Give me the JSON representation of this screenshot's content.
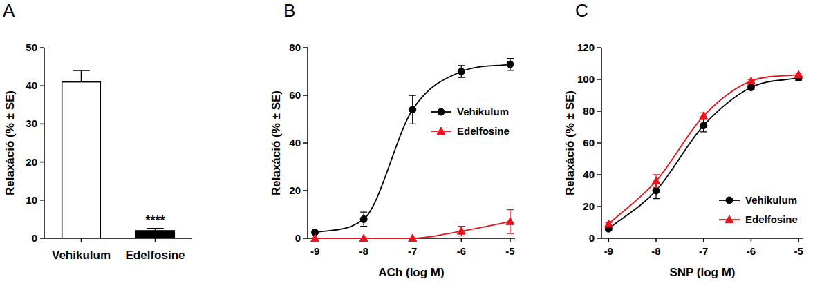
{
  "chart_data": [
    {
      "type": "bar",
      "title": "A",
      "categories": [
        "Vehikulum",
        "Edelfosine"
      ],
      "values": [
        41,
        2
      ],
      "errors": [
        3,
        0.6
      ],
      "colors": [
        "#ffffff",
        "#000000"
      ],
      "y_label": "Relaxáció (% ± SE)",
      "ylim": [
        0,
        50
      ],
      "yticks": [
        0,
        10,
        20,
        30,
        40,
        50
      ],
      "annotations": [
        {
          "text": "****",
          "category": "Edelfosine"
        }
      ]
    },
    {
      "type": "line",
      "title": "B",
      "x": [
        -9,
        -8,
        -7,
        -6,
        -5
      ],
      "x_label": "ACh (log M)",
      "y_label": "Relaxáció (% ± SE)",
      "xlim": [
        -9.15,
        -4.9
      ],
      "xticks": [
        -9,
        -8,
        -7,
        -6,
        -5
      ],
      "ylim": [
        0,
        80
      ],
      "yticks": [
        0,
        20,
        40,
        60,
        80
      ],
      "legend": "center right",
      "series": [
        {
          "name": "Vehikulum",
          "color": "#000000",
          "marker": "circle",
          "values": [
            2.5,
            8,
            54,
            70,
            73
          ],
          "errors": [
            0.5,
            3,
            6,
            2.5,
            2.5
          ]
        },
        {
          "name": "Edelfosine",
          "color": "#e8141c",
          "marker": "triangle",
          "values": [
            0,
            0,
            0,
            3,
            7
          ],
          "errors": [
            0,
            0,
            0,
            2,
            5
          ]
        }
      ]
    },
    {
      "type": "line",
      "title": "C",
      "x": [
        -9,
        -8,
        -7,
        -6,
        -5
      ],
      "x_label": "SNP (log M)",
      "y_label": "Relaxáció (% ± SE)",
      "xlim": [
        -9.15,
        -4.9
      ],
      "xticks": [
        -9,
        -8,
        -7,
        -6,
        -5
      ],
      "ylim": [
        0,
        120
      ],
      "yticks": [
        0,
        20,
        40,
        60,
        80,
        100,
        120
      ],
      "legend": "lower right",
      "series": [
        {
          "name": "Vehikulum",
          "color": "#000000",
          "marker": "circle",
          "values": [
            6,
            30,
            71,
            95,
            101
          ],
          "errors": [
            1,
            5,
            4,
            1.5,
            1.5
          ]
        },
        {
          "name": "Edelfosine",
          "color": "#e8141c",
          "marker": "triangle",
          "values": [
            9,
            36,
            77,
            99,
            103
          ],
          "errors": [
            1,
            4,
            2,
            1,
            1
          ]
        }
      ]
    }
  ]
}
